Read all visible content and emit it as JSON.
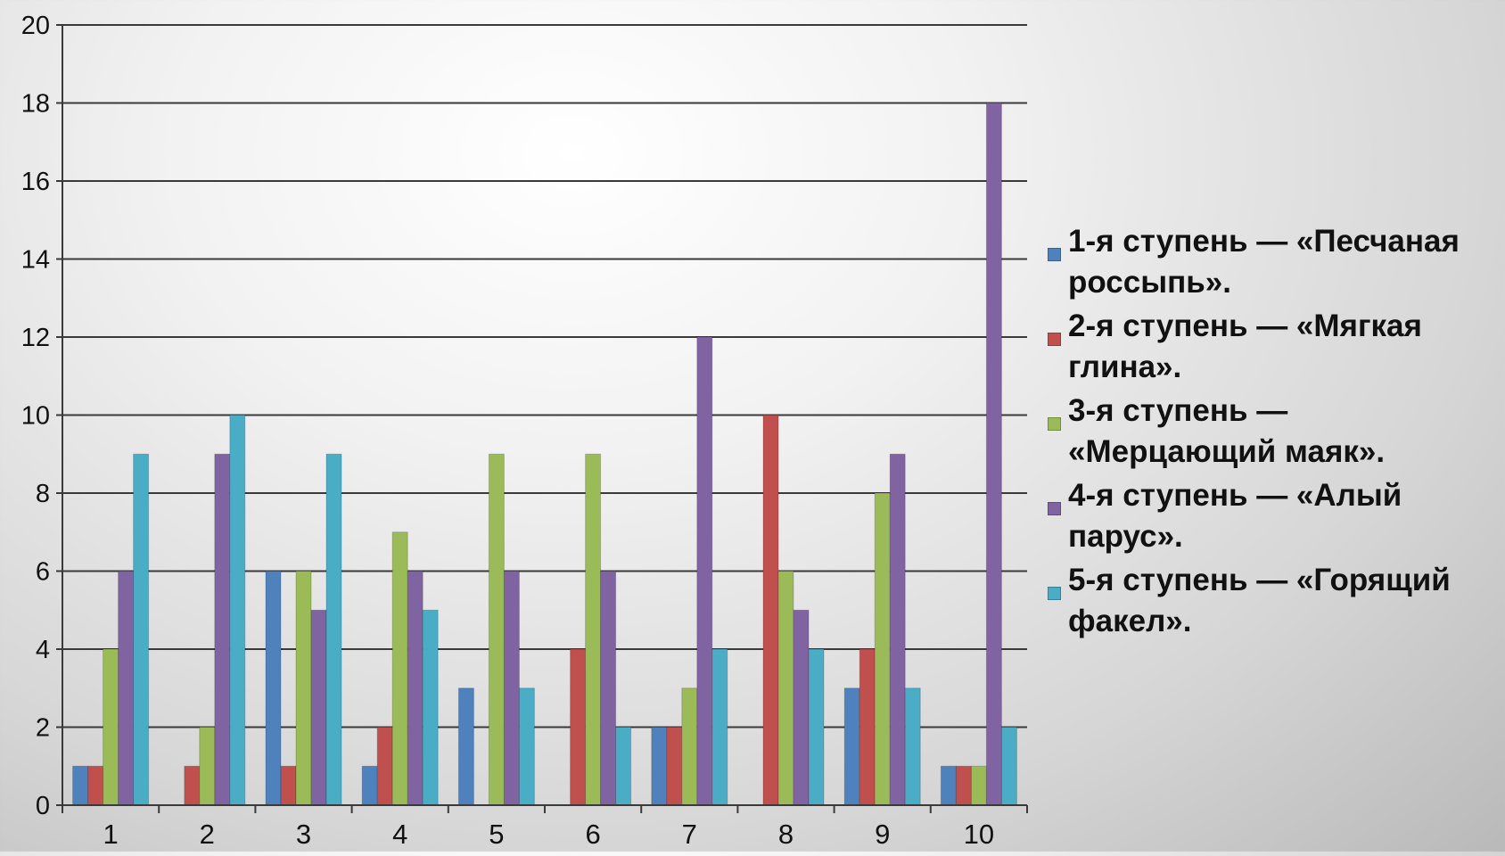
{
  "chart_data": {
    "type": "bar",
    "categories": [
      "1",
      "2",
      "3",
      "4",
      "5",
      "6",
      "7",
      "8",
      "9",
      "10"
    ],
    "series": [
      {
        "name": "1-я ступень — «Песчаная россыпь».",
        "color": "#4f81bd",
        "values": [
          1,
          0,
          6,
          1,
          3,
          0,
          2,
          0,
          3,
          1
        ]
      },
      {
        "name": "2-я ступень — «Мягкая глина».",
        "color": "#c0504d",
        "values": [
          1,
          1,
          1,
          2,
          0,
          4,
          2,
          10,
          4,
          1
        ]
      },
      {
        "name": "3-я ступень — «Мерцающий маяк».",
        "color": "#9bbb59",
        "values": [
          4,
          2,
          6,
          7,
          9,
          9,
          3,
          6,
          8,
          1
        ]
      },
      {
        "name": "4-я ступень — «Алый парус».",
        "color": "#8064a2",
        "values": [
          6,
          9,
          5,
          6,
          6,
          6,
          12,
          5,
          9,
          18
        ]
      },
      {
        "name": "5-я ступень — «Горящий факел».",
        "color": "#4bacc6",
        "values": [
          9,
          10,
          9,
          5,
          3,
          2,
          4,
          4,
          3,
          2
        ]
      }
    ],
    "ylim": [
      0,
      20
    ],
    "yticks": [
      "0",
      "2",
      "4",
      "6",
      "8",
      "10",
      "12",
      "14",
      "16",
      "18",
      "20"
    ],
    "grid": true,
    "legend_position": "right"
  }
}
